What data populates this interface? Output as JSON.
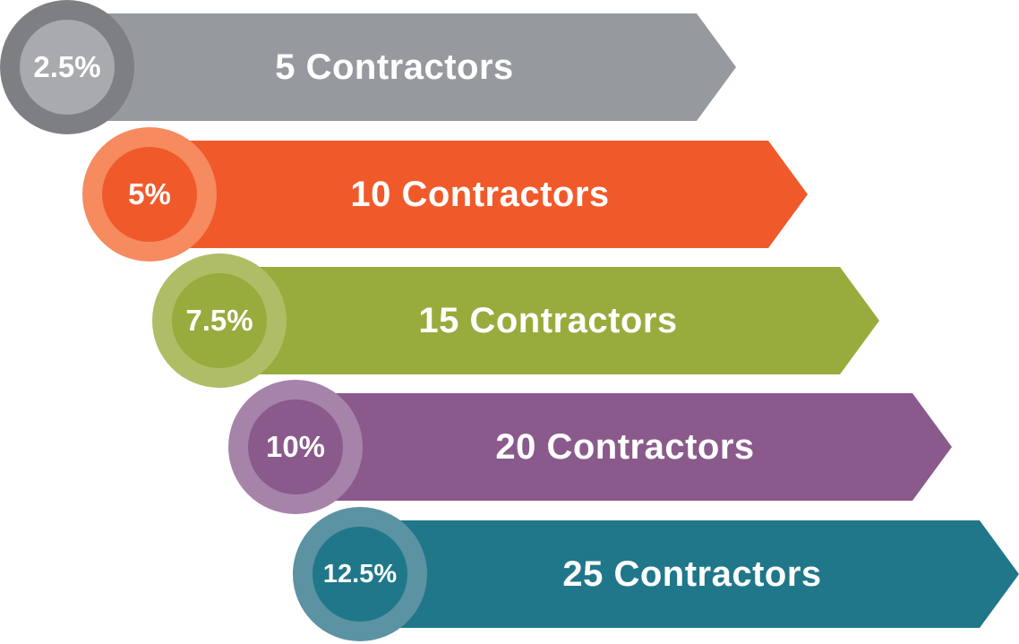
{
  "tiers": [
    {
      "percent": "2.5%",
      "label": "5 Contractors",
      "color": "#969a9e",
      "ring_color": "#7d7f82"
    },
    {
      "percent": "5%",
      "label": "10 Contractors",
      "color": "#f05a2b",
      "ring_color": "#f58b5e"
    },
    {
      "percent": "7.5%",
      "label": "15 Contractors",
      "color": "#98ab3d",
      "ring_color": "#afbd66"
    },
    {
      "percent": "10%",
      "label": "20 Contractors",
      "color": "#8a5a8c",
      "ring_color": "#a683a8"
    },
    {
      "percent": "12.5%",
      "label": "25 Contractors",
      "color": "#20778a",
      "ring_color": "#5b93a3"
    }
  ]
}
